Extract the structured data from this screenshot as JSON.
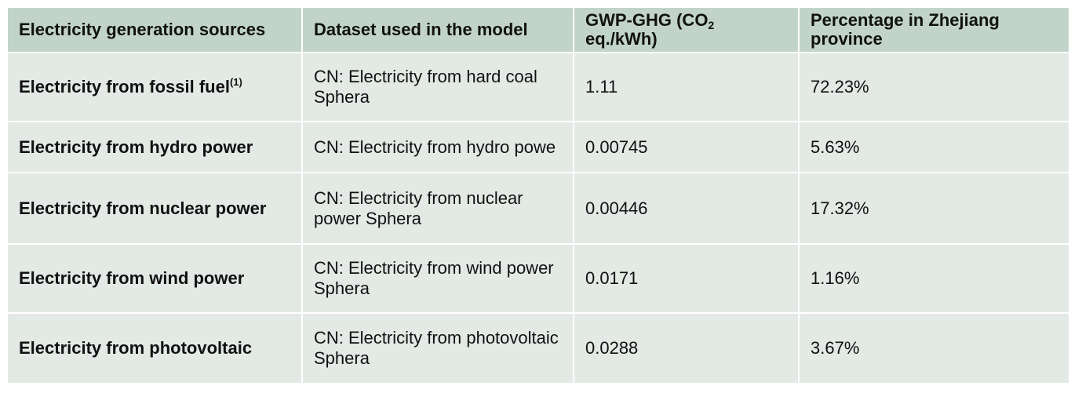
{
  "table": {
    "headers": {
      "source": "Electricity generation sources",
      "dataset": "Dataset used in the model",
      "gwp_main": "GWP-GHG (CO",
      "gwp_sub": "2",
      "gwp_tail": "eq./kWh)",
      "percentage": "Percentage in Zhejiang province"
    },
    "rows": [
      {
        "source": "Electricity from fossil fuel",
        "source_note": "(1)",
        "dataset": "CN: Electricity from hard coal Sphera",
        "gwp": "1.11",
        "percentage": "72.23%"
      },
      {
        "source": "Electricity from hydro power",
        "source_note": "",
        "dataset": "CN: Electricity from hydro powe",
        "gwp": "0.00745",
        "percentage": "5.63%"
      },
      {
        "source": "Electricity from nuclear power",
        "source_note": "",
        "dataset": "CN: Electricity from nuclear power Sphera",
        "gwp": "0.00446",
        "percentage": "17.32%"
      },
      {
        "source": "Electricity from wind power",
        "source_note": "",
        "dataset": "CN: Electricity from wind power Sphera",
        "gwp": "0.0171",
        "percentage": "1.16%"
      },
      {
        "source": "Electricity from photovoltaic",
        "source_note": "",
        "dataset": "CN: Electricity from photovoltaic Sphera",
        "gwp": "0.0288",
        "percentage": "3.67%"
      }
    ]
  },
  "colors": {
    "header_bg": "#c2d4c9",
    "cell_bg": "#e3e9e4",
    "border": "#ffffff"
  }
}
